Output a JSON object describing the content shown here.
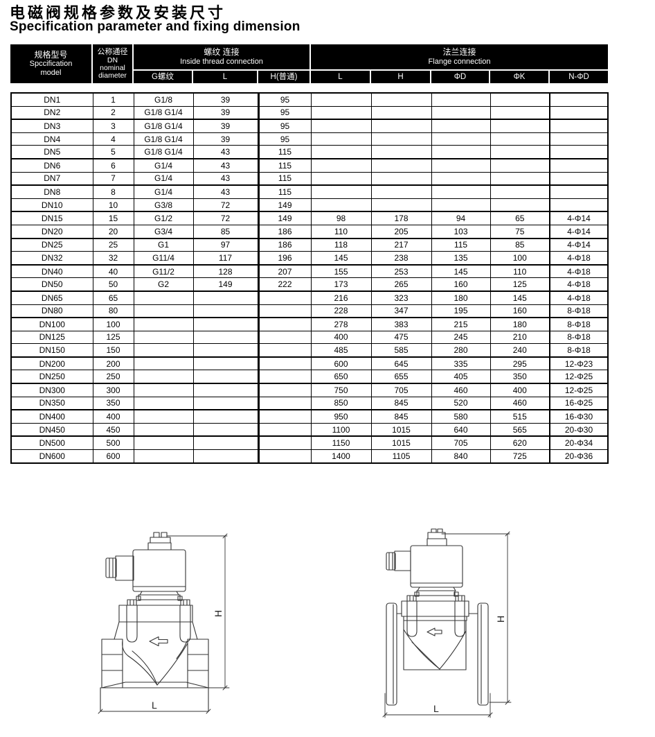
{
  "page": {
    "title_zh": "电磁阀规格参数及安装尺寸",
    "title_en": "Specification parameter and fixing dimension"
  },
  "table": {
    "header": {
      "model_zh": "规格型号",
      "model_en1": "Spccification",
      "model_en2": "model",
      "dn_zh": "公称通径",
      "dn_l2": "DN",
      "dn_l3": "nominal",
      "dn_l4": "diameter",
      "thread_group_zh": "螺纹 连接",
      "thread_group_en": "Inside thread connection",
      "flange_group_zh": "法兰连接",
      "flange_group_en": "Flange connection",
      "sub_thread": [
        "G螺纹",
        "L",
        "H(普通)"
      ],
      "sub_flange": [
        "L",
        "H",
        "ΦD",
        "ΦK",
        "N-ΦD"
      ]
    },
    "rows": [
      [
        "DN1",
        "1",
        "G1/8",
        "39",
        "95",
        "",
        "",
        "",
        "",
        ""
      ],
      [
        "DN2",
        "2",
        "G1/8 G1/4",
        "39",
        "95",
        "",
        "",
        "",
        "",
        ""
      ],
      [
        "DN3",
        "3",
        "G1/8 G1/4",
        "39",
        "95",
        "",
        "",
        "",
        "",
        ""
      ],
      [
        "DN4",
        "4",
        "G1/8 G1/4",
        "39",
        "95",
        "",
        "",
        "",
        "",
        ""
      ],
      [
        "DN5",
        "5",
        "G1/8 G1/4",
        "43",
        "115",
        "",
        "",
        "",
        "",
        ""
      ],
      [
        "DN6",
        "6",
        "G1/4",
        "43",
        "115",
        "",
        "",
        "",
        "",
        ""
      ],
      [
        "DN7",
        "7",
        "G1/4",
        "43",
        "115",
        "",
        "",
        "",
        "",
        ""
      ],
      [
        "DN8",
        "8",
        "G1/4",
        "43",
        "115",
        "",
        "",
        "",
        "",
        ""
      ],
      [
        "DN10",
        "10",
        "G3/8",
        "72",
        "149",
        "",
        "",
        "",
        "",
        ""
      ],
      [
        "DN15",
        "15",
        "G1/2",
        "72",
        "149",
        "98",
        "178",
        "94",
        "65",
        "4-Φ14"
      ],
      [
        "DN20",
        "20",
        "G3/4",
        "85",
        "186",
        "110",
        "205",
        "103",
        "75",
        "4-Φ14"
      ],
      [
        "DN25",
        "25",
        "G1",
        "97",
        "186",
        "118",
        "217",
        "115",
        "85",
        "4-Φ14"
      ],
      [
        "DN32",
        "32",
        "G11/4",
        "117",
        "196",
        "145",
        "238",
        "135",
        "100",
        "4-Φ18"
      ],
      [
        "DN40",
        "40",
        "G11/2",
        "128",
        "207",
        "155",
        "253",
        "145",
        "110",
        "4-Φ18"
      ],
      [
        "DN50",
        "50",
        "G2",
        "149",
        "222",
        "173",
        "265",
        "160",
        "125",
        "4-Φ18"
      ],
      [
        "DN65",
        "65",
        "",
        "",
        "",
        "216",
        "323",
        "180",
        "145",
        "4-Φ18"
      ],
      [
        "DN80",
        "80",
        "",
        "",
        "",
        "228",
        "347",
        "195",
        "160",
        "8-Φ18"
      ],
      [
        "DN100",
        "100",
        "",
        "",
        "",
        "278",
        "383",
        "215",
        "180",
        "8-Φ18"
      ],
      [
        "DN125",
        "125",
        "",
        "",
        "",
        "400",
        "475",
        "245",
        "210",
        "8-Φ18"
      ],
      [
        "DN150",
        "150",
        "",
        "",
        "",
        "485",
        "585",
        "280",
        "240",
        "8-Φ18"
      ],
      [
        "DN200",
        "200",
        "",
        "",
        "",
        "600",
        "645",
        "335",
        "295",
        "12-Φ23"
      ],
      [
        "DN250",
        "250",
        "",
        "",
        "",
        "650",
        "655",
        "405",
        "350",
        "12-Φ25"
      ],
      [
        "DN300",
        "300",
        "",
        "",
        "",
        "750",
        "705",
        "460",
        "400",
        "12-Φ25"
      ],
      [
        "DN350",
        "350",
        "",
        "",
        "",
        "850",
        "845",
        "520",
        "460",
        "16-Φ25"
      ],
      [
        "DN400",
        "400",
        "",
        "",
        "",
        "950",
        "845",
        "580",
        "515",
        "16-Φ30"
      ],
      [
        "DN450",
        "450",
        "",
        "",
        "",
        "1100",
        "1015",
        "640",
        "565",
        "20-Φ30"
      ],
      [
        "DN500",
        "500",
        "",
        "",
        "",
        "1150",
        "1015",
        "705",
        "620",
        "20-Φ34"
      ],
      [
        "DN600",
        "600",
        "",
        "",
        "",
        "1400",
        "1105",
        "840",
        "725",
        "20-Φ36"
      ]
    ]
  },
  "drawings": {
    "left": {
      "dim_h": "H",
      "dim_l": "L"
    },
    "right": {
      "dim_h": "H",
      "dim_l": "L"
    }
  }
}
